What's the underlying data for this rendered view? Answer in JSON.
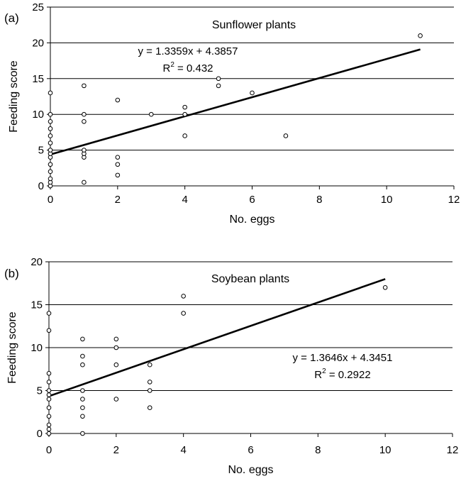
{
  "chart_data": [
    {
      "type": "scatter",
      "panel_label": "(a)",
      "title": "Sunflower plants",
      "xlabel": "No. eggs",
      "ylabel": "Feeding score",
      "xlim": [
        0,
        12
      ],
      "ylim": [
        0,
        25
      ],
      "xticks": [
        0,
        2,
        4,
        6,
        8,
        10,
        12
      ],
      "yticks": [
        0,
        5,
        10,
        15,
        20,
        25
      ],
      "grid": "horizontal",
      "equation": "y = 1.3359x + 4.3857",
      "r2_label": "R",
      "r2_sup": "2",
      "r2_value": " = 0.432",
      "trendline": {
        "slope": 1.3359,
        "intercept": 4.3857,
        "x_range": [
          0,
          11
        ]
      },
      "points": [
        [
          0,
          0
        ],
        [
          0,
          0.5
        ],
        [
          0,
          1
        ],
        [
          0,
          2
        ],
        [
          0,
          3
        ],
        [
          0,
          4
        ],
        [
          0,
          4.5
        ],
        [
          0,
          5
        ],
        [
          0,
          6
        ],
        [
          0,
          7
        ],
        [
          0,
          8
        ],
        [
          0,
          9
        ],
        [
          0,
          10
        ],
        [
          0,
          13
        ],
        [
          1,
          0.5
        ],
        [
          1,
          4
        ],
        [
          1,
          4.5
        ],
        [
          1,
          5
        ],
        [
          1,
          9
        ],
        [
          1,
          10
        ],
        [
          1,
          14
        ],
        [
          2,
          1.5
        ],
        [
          2,
          3
        ],
        [
          2,
          4
        ],
        [
          2,
          12
        ],
        [
          3,
          10
        ],
        [
          4,
          7
        ],
        [
          4,
          10
        ],
        [
          4,
          11
        ],
        [
          5,
          14
        ],
        [
          5,
          15
        ],
        [
          6,
          13
        ],
        [
          7,
          7
        ],
        [
          11,
          21
        ]
      ]
    },
    {
      "type": "scatter",
      "panel_label": "(b)",
      "title": "Soybean plants",
      "xlabel": "No. eggs",
      "ylabel": "Feeding score",
      "xlim": [
        0,
        12
      ],
      "ylim": [
        0,
        20
      ],
      "xticks": [
        0,
        2,
        4,
        6,
        8,
        10,
        12
      ],
      "yticks": [
        0,
        5,
        10,
        15,
        20
      ],
      "grid": "horizontal",
      "equation": "y = 1.3646x + 4.3451",
      "r2_label": "R",
      "r2_sup": "2",
      "r2_value": " = 0.2922",
      "trendline": {
        "slope": 1.3646,
        "intercept": 4.3451,
        "x_range": [
          0,
          10
        ]
      },
      "points": [
        [
          0,
          0
        ],
        [
          0,
          0.5
        ],
        [
          0,
          1
        ],
        [
          0,
          2
        ],
        [
          0,
          3
        ],
        [
          0,
          4
        ],
        [
          0,
          4.5
        ],
        [
          0,
          5
        ],
        [
          0,
          6
        ],
        [
          0,
          7
        ],
        [
          0,
          12
        ],
        [
          0,
          14
        ],
        [
          1,
          0
        ],
        [
          1,
          2
        ],
        [
          1,
          3
        ],
        [
          1,
          4
        ],
        [
          1,
          5
        ],
        [
          1,
          8
        ],
        [
          1,
          9
        ],
        [
          1,
          11
        ],
        [
          2,
          4
        ],
        [
          2,
          8
        ],
        [
          2,
          10
        ],
        [
          2,
          11
        ],
        [
          3,
          3
        ],
        [
          3,
          5
        ],
        [
          3,
          6
        ],
        [
          3,
          8
        ],
        [
          4,
          14
        ],
        [
          4,
          16
        ],
        [
          10,
          17
        ]
      ]
    }
  ]
}
